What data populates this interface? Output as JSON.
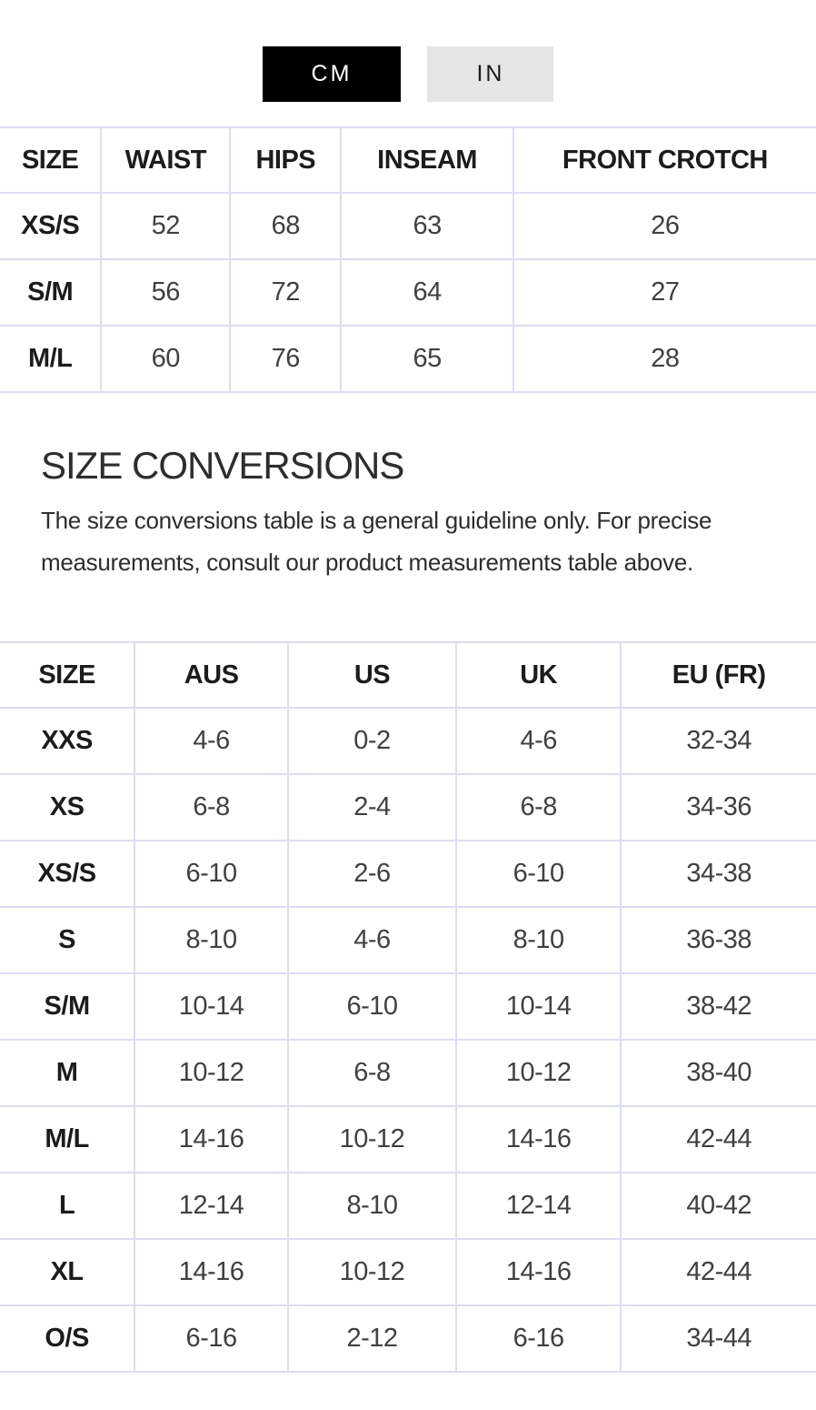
{
  "toggle": {
    "options": [
      {
        "label": "CM",
        "active": true
      },
      {
        "label": "IN",
        "active": false
      }
    ]
  },
  "measurements_table": {
    "headers": [
      "SIZE",
      "WAIST",
      "HIPS",
      "INSEAM",
      "FRONT CROTCH"
    ],
    "rows": [
      {
        "size": "XS/S",
        "values": [
          "52",
          "68",
          "63",
          "26"
        ]
      },
      {
        "size": "S/M",
        "values": [
          "56",
          "72",
          "64",
          "27"
        ]
      },
      {
        "size": "M/L",
        "values": [
          "60",
          "76",
          "65",
          "28"
        ]
      }
    ]
  },
  "size_conversions": {
    "title": "SIZE CONVERSIONS",
    "description": "The size conversions table is a general guideline only. For precise measurements, consult our product measurements table above.",
    "table": {
      "headers": [
        "SIZE",
        "AUS",
        "US",
        "UK",
        "EU (FR)"
      ],
      "rows": [
        {
          "size": "XXS",
          "values": [
            "4-6",
            "0-2",
            "4-6",
            "32-34"
          ]
        },
        {
          "size": "XS",
          "values": [
            "6-8",
            "2-4",
            "6-8",
            "34-36"
          ]
        },
        {
          "size": "XS/S",
          "values": [
            "6-10",
            "2-6",
            "6-10",
            "34-38"
          ]
        },
        {
          "size": "S",
          "values": [
            "8-10",
            "4-6",
            "8-10",
            "36-38"
          ]
        },
        {
          "size": "S/M",
          "values": [
            "10-14",
            "6-10",
            "10-14",
            "38-42"
          ]
        },
        {
          "size": "M",
          "values": [
            "10-12",
            "6-8",
            "10-12",
            "38-40"
          ]
        },
        {
          "size": "M/L",
          "values": [
            "14-16",
            "10-12",
            "14-16",
            "42-44"
          ]
        },
        {
          "size": "L",
          "values": [
            "12-14",
            "8-10",
            "12-14",
            "40-42"
          ]
        },
        {
          "size": "XL",
          "values": [
            "14-16",
            "10-12",
            "14-16",
            "42-44"
          ]
        },
        {
          "size": "O/S",
          "values": [
            "6-16",
            "2-12",
            "6-16",
            "34-44"
          ]
        }
      ]
    }
  },
  "colors": {
    "active_toggle_bg": "#000000",
    "active_toggle_text": "#ffffff",
    "inactive_toggle_bg": "#e5e5e5",
    "inactive_toggle_text": "#1a1a1a",
    "table_border": "#dcddf1"
  }
}
